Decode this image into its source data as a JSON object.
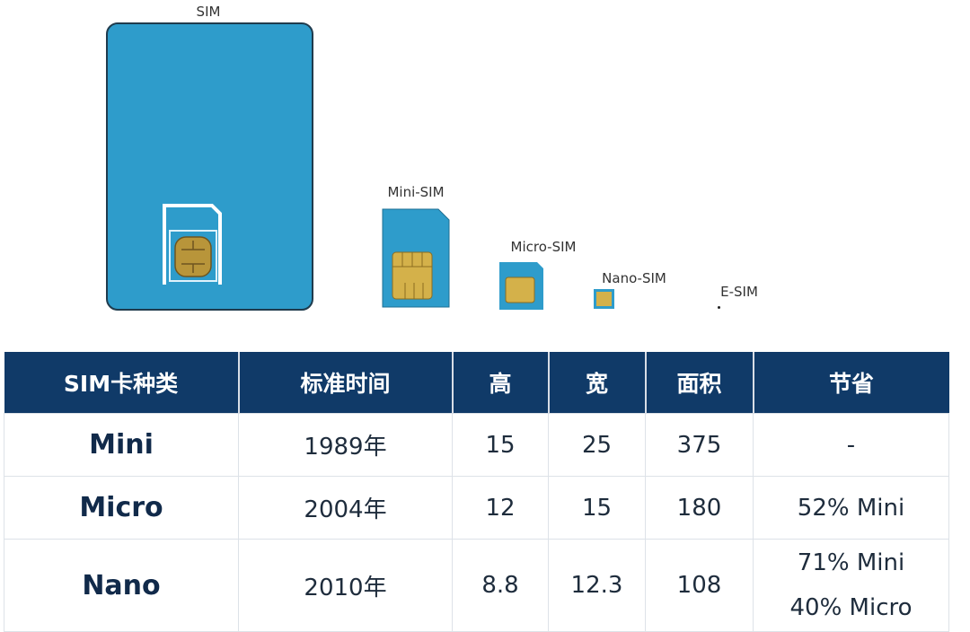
{
  "illustration": {
    "labels": [
      "SIM",
      "Mini-SIM",
      "Micro-SIM",
      "Nano-SIM",
      "E-SIM"
    ],
    "card_color": "#2e9ccb",
    "chip_color": "#b8953a"
  },
  "table": {
    "header_color": "#103a68",
    "headers": [
      "SIM卡种类",
      "标准时间",
      "高",
      "宽",
      "面积",
      "节省"
    ],
    "rows": [
      {
        "type": "Mini",
        "year": "1989年",
        "height": "15",
        "width": "25",
        "area": "375",
        "saving": [
          "-"
        ]
      },
      {
        "type": "Micro",
        "year": "2004年",
        "height": "12",
        "width": "15",
        "area": "180",
        "saving": [
          "52% Mini"
        ]
      },
      {
        "type": "Nano",
        "year": "2010年",
        "height": "8.8",
        "width": "12.3",
        "area": "108",
        "saving": [
          "71% Mini",
          "40% Micro"
        ]
      }
    ]
  }
}
